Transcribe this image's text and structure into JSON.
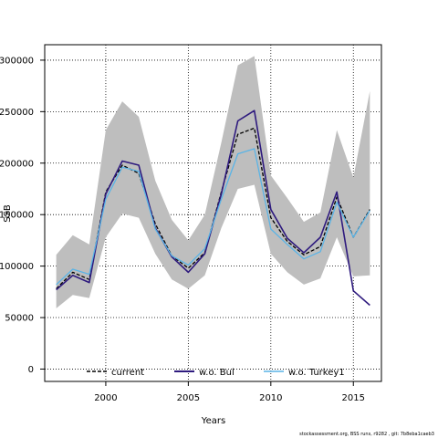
{
  "chart_data": {
    "type": "line",
    "title": "",
    "xlabel": "Years",
    "ylabel": "SSB",
    "xlim": [
      1996.3,
      2016.7
    ],
    "ylim": [
      -12000,
      315000
    ],
    "xticks": [
      2000,
      2005,
      2010,
      2015
    ],
    "yticks": [
      0,
      50000,
      100000,
      150000,
      200000,
      250000,
      300000
    ],
    "grid": true,
    "legend_position": "bottom",
    "band": {
      "color": "#bebebe",
      "x": [
        1997,
        1998,
        1999,
        2000,
        2001,
        2002,
        2003,
        2004,
        2005,
        2006,
        2007,
        2008,
        2009,
        2010,
        2011,
        2012,
        2013,
        2014,
        2015,
        2016
      ],
      "upper": [
        111000,
        130000,
        121000,
        232000,
        260000,
        245000,
        183000,
        145000,
        125000,
        150000,
        220000,
        295000,
        304000,
        188000,
        166000,
        143000,
        152000,
        232000,
        186000,
        270000
      ],
      "lower": [
        59000,
        72000,
        69000,
        128000,
        151000,
        147000,
        112000,
        87000,
        78000,
        91000,
        137000,
        175000,
        179000,
        112000,
        94000,
        82000,
        88000,
        128000,
        90000,
        91000
      ]
    },
    "series": [
      {
        "name": "current",
        "color": "#000000",
        "dash": "4,2",
        "x": [
          1997,
          1998,
          1999,
          2000,
          2001,
          2002,
          2003,
          2004,
          2005,
          2006,
          2007,
          2008,
          2009,
          2010,
          2011,
          2012,
          2013,
          2014,
          2015,
          2016
        ],
        "values": [
          78000,
          94000,
          87000,
          172000,
          198000,
          190000,
          141000,
          110000,
          98000,
          113000,
          172000,
          228000,
          234000,
          147000,
          124000,
          111000,
          119000,
          167000,
          128000,
          155000
        ]
      },
      {
        "name": "w.o. Bul",
        "color": "#2e1a7e",
        "dash": "",
        "x": [
          1997,
          1998,
          1999,
          2000,
          2001,
          2002,
          2003,
          2004,
          2005,
          2006,
          2007,
          2008,
          2009,
          2010,
          2011,
          2012,
          2013,
          2014,
          2015,
          2016
        ],
        "values": [
          77000,
          91000,
          84000,
          170000,
          202000,
          198000,
          137000,
          109000,
          94000,
          112000,
          170000,
          241000,
          251000,
          155000,
          127000,
          113000,
          128000,
          172000,
          76000,
          62000
        ]
      },
      {
        "name": "w.o. Turkey1",
        "color": "#5ab4e6",
        "dash": "",
        "x": [
          1997,
          1998,
          1999,
          2000,
          2001,
          2002,
          2003,
          2004,
          2005,
          2006,
          2007,
          2008,
          2009,
          2010,
          2011,
          2012,
          2013,
          2014,
          2015,
          2016
        ],
        "values": [
          82000,
          97000,
          92000,
          165000,
          196000,
          192000,
          136000,
          110000,
          101000,
          117000,
          165000,
          209000,
          214000,
          136000,
          121000,
          107000,
          114000,
          162000,
          128000,
          154000
        ]
      }
    ]
  },
  "footer": "stockassessment.org, BSS runs, r9282 , git: 7b8eba1caeb3"
}
